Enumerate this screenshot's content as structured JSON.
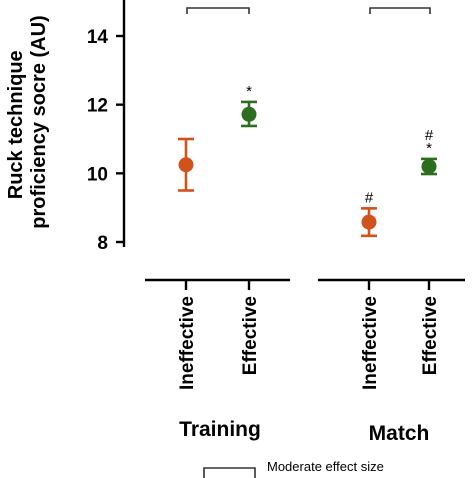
{
  "chart_data": {
    "type": "scatter",
    "ylabel_lines": [
      "Ruck technique",
      "proficiency socre (AU)"
    ],
    "ylim": [
      8,
      15
    ],
    "yticks": [
      8,
      10,
      12,
      14
    ],
    "groups": [
      {
        "name": "Training",
        "points": [
          {
            "category": "Ineffective",
            "mean": 10.25,
            "low": 9.5,
            "high": 11.0,
            "color": "#d2521c",
            "annotation": ""
          },
          {
            "category": "Effective",
            "mean": 11.72,
            "low": 11.38,
            "high": 12.08,
            "color": "#2d6e1e",
            "annotation": "*"
          }
        ]
      },
      {
        "name": "Match",
        "points": [
          {
            "category": "Ineffective",
            "mean": 8.58,
            "low": 8.18,
            "high": 8.98,
            "color": "#d2521c",
            "annotation": "#"
          },
          {
            "category": "Effective",
            "mean": 10.2,
            "low": 9.98,
            "high": 10.42,
            "color": "#2d6e1e",
            "annotation": "#\n*"
          }
        ]
      }
    ],
    "legend": {
      "label": "Moderate effect size"
    }
  }
}
